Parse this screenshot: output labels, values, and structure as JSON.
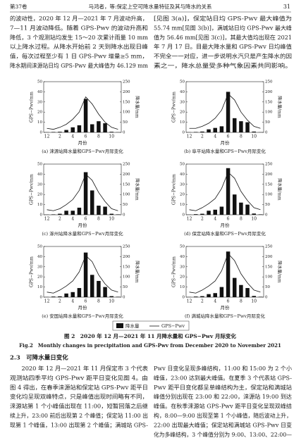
{
  "header": {
    "volume": "第37卷",
    "running_title": "马鸿者，等:保定上空可降水量特征及其与降水的关系",
    "page": "31"
  },
  "top_left": [
    "的波动性，2020 年 12 月—2021 年 7 月波动升高，",
    "7—11 月波动降低。随着 GPS-Pwv 的波动升高和",
    "降低，3 个观测站均发生 15～20 次累计雨量 10 mm",
    "以上降水过程。从降水开始前 2 天到降水出现日峰",
    "值，每次过程至少有 1 日 GPS-Pwv 增量≥5 mm，",
    "降水期间涞源站日均 GPS-Pwv 最大峰值为 46.129 mm"
  ],
  "top_right": [
    "[见图 3(a)]，保定站日均 GPS-Pwv 最大峰值为",
    "55.74 mm[见图 3(b)]，满城站日均 GPS-Pwv 最大峰",
    "值为 56.46 mm[见图 3(c)]，其最大值均出现在 2021",
    "年 7 月 17 日。目最大降水量和 GPS-Pwv 日均峰值",
    "不完全一一对应，进一步说明水汽只是产生降水的因",
    "素之一，降水总量受多种气象因素共同影响。"
  ],
  "figure": {
    "type": "bar_line",
    "xlabel": "月份",
    "ylabel": "GPS−Pwv/mm",
    "y2label": "降水量/mm",
    "categories": [
      "12",
      null,
      "2",
      null,
      "4",
      null,
      "6",
      null,
      "8",
      null,
      "10",
      null
    ],
    "ylim": [
      0,
      50
    ],
    "yticks": [
      0,
      10,
      20,
      30,
      40,
      50
    ],
    "y2lim": [
      0,
      250
    ],
    "y2ticks": [
      0,
      50,
      100,
      150,
      200,
      250
    ],
    "legend": [
      "降水量",
      "GPS−Pwv"
    ],
    "panels": [
      {
        "caption": "(a) 涞源站降水量和GPS−Pwv月际变化",
        "pwv": [
          4,
          3,
          5,
          8,
          13,
          20,
          35,
          28,
          18,
          10,
          5,
          3
        ],
        "precip": [
          1,
          2,
          3,
          12,
          25,
          35,
          165,
          40,
          55,
          45,
          3,
          1
        ]
      },
      {
        "caption": "(b) 阜平站降水量和GPS−Pwv月际变化",
        "pwv": [
          4,
          4,
          6,
          9,
          14,
          22,
          38,
          32,
          20,
          12,
          6,
          4
        ],
        "precip": [
          1,
          2,
          4,
          15,
          22,
          30,
          200,
          70,
          55,
          50,
          4,
          1
        ]
      },
      {
        "caption": "(c) 涿州站降水量和GPS−Pwv月际变化",
        "pwv": [
          5,
          4,
          6,
          10,
          15,
          24,
          40,
          34,
          22,
          13,
          6,
          4
        ],
        "precip": [
          1,
          2,
          5,
          20,
          20,
          35,
          210,
          120,
          45,
          40,
          5,
          2
        ]
      },
      {
        "caption": "(d) 保定站降水量和GPS−Pwv月际变化",
        "pwv": [
          5,
          4,
          7,
          11,
          16,
          26,
          42,
          36,
          23,
          14,
          7,
          5
        ],
        "precip": [
          1,
          3,
          5,
          20,
          25,
          40,
          230,
          100,
          60,
          50,
          6,
          2
        ]
      },
      {
        "caption": "(e) 安国站降水量和GPS−Pwv月际变化",
        "pwv": [
          5,
          4,
          7,
          11,
          16,
          25,
          41,
          35,
          22,
          13,
          7,
          5
        ],
        "precip": [
          1,
          3,
          4,
          18,
          25,
          45,
          220,
          110,
          80,
          50,
          5,
          2
        ]
      },
      {
        "caption": "(f) 满城站降水量和GPS−Pwv月际变化",
        "pwv": [
          5,
          4,
          7,
          11,
          16,
          26,
          43,
          36,
          23,
          14,
          7,
          5
        ],
        "precip": [
          1,
          3,
          5,
          15,
          20,
          50,
          225,
          95,
          60,
          45,
          6,
          2
        ]
      }
    ]
  },
  "caption_cn": "图 2　2020 年 12 月—2021 年 11 月降水量和 GPS−Pwv 月际变化",
  "caption_en": "Fig.2　Monthly changes in precipitation and GPS-Pwv from December 2020 to November 2021",
  "section": "2.3　可降水量日变化",
  "bottom_left": [
    "　　2020 年 12 月—2021 年 11 月保定市 3 个代表",
    "观测站四季平均 GPS-Pwv 距平日变化见图 4。由",
    "图 4 得出，在春季涞源站和保定站 GPS-Pwv 距平日",
    "变化均呈现双峰特点，只是峰值出现时间略有不同，",
    "涞源站第 1 个小峰值出现在 11:00，短暂回落之后继",
    "续上升，23:00 前后出现第 2 个峰值；保定站 11:00 出",
    "现第 1 个峰值，13:00 出现第 2 个峰值；满城站 GPS-"
  ],
  "bottom_right": [
    "Pwv 日变化呈现多峰结构，11:00 和 15:00 为 2 个小",
    "峰值，23:00 达到最大峰值。在夏季 3 个代表站 GPS-",
    "Pwv 距平日变化都呈单峰结构为主，保定站和满城站",
    "峰值分别出现在 23:00 和 22:00，涞源站 19:00 到达",
    "峰值。在秋季涞源站 GPS-Pwv 距平日变化呈现双峰结",
    "构，8:00—9:00 出现至第 1 个小峰值，随后波动上升，",
    "22:00 出现最大峰值；保定站和满城站 GPS-Pwv 日变",
    "化为多峰结构，3 个峰值分别为 9:00、13:00、22:00—"
  ]
}
